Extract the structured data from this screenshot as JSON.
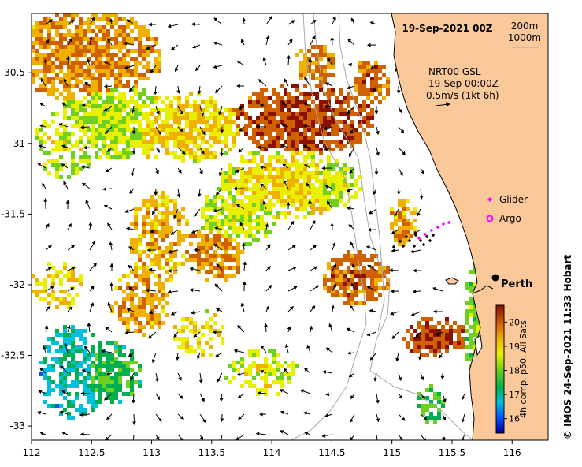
{
  "map": {
    "date_title": "19-Sep-2021 00Z",
    "depth_legend": [
      "200m",
      "1000m"
    ],
    "current_info": [
      "NRT00 GSL",
      "19-Sep 00:00Z",
      "0.5m/s (1kt 6h)"
    ],
    "legend": {
      "glider": "Glider",
      "argo": "Argo"
    },
    "city": "Perth",
    "credit": "© IMOS 24-Sep-2021 11:33 Hobart",
    "colorbar_title": "4h comp, p50, All Sats",
    "colorbar_ticks": [
      "16",
      "17",
      "18",
      "19",
      "20"
    ],
    "colorbar_range": [
      15.4,
      20.7
    ],
    "x_ticks": [
      "112",
      "112.5",
      "113",
      "113.5",
      "114",
      "114.5",
      "115",
      "115.5",
      "116"
    ],
    "y_ticks": [
      "-30.5",
      "-31",
      "-31.5",
      "-32",
      "-32.5",
      "-33"
    ],
    "lon_range": [
      112,
      116.3
    ],
    "lat_range": [
      -33.1,
      -30.08
    ],
    "colors": {
      "land": "#fbc89a",
      "coast": "#000000",
      "contour": "#a8a8a8",
      "glider": "#ff00ff",
      "argo": "#ff00ff",
      "track": "#000000"
    }
  }
}
